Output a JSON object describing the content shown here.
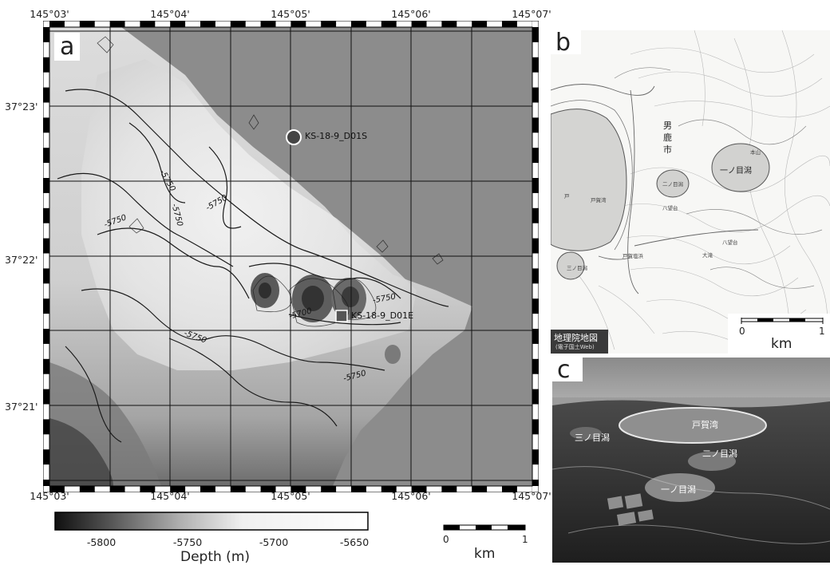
{
  "panel_a": {
    "letter": "a",
    "top_ticks": [
      "145°03'",
      "145°04'",
      "145°05'",
      "145°06'",
      "145°07'"
    ],
    "bottom_ticks": [
      "145°03'",
      "145°04'",
      "145°05'",
      "145°06'",
      "145°07'"
    ],
    "left_ticks": [
      "37°23'",
      "37°22'",
      "37°21'"
    ],
    "sites": [
      {
        "label": "KS-18-9_D01S",
        "marker": "circle"
      },
      {
        "label": "KS-18-9_D01E",
        "marker": "square"
      }
    ],
    "contour_labels": [
      "-5750",
      "-5750",
      "-5750",
      "-5750",
      "-5750",
      "-5700",
      "-5750",
      "-5750"
    ],
    "colorbar": {
      "ticks": [
        "-5800",
        "-5750",
        "-5700",
        "-5650"
      ],
      "label": "Depth (m)"
    },
    "scale": {
      "start": "0",
      "end": "1",
      "unit": "km"
    }
  },
  "panel_b": {
    "letter": "b",
    "place_city": "男\n鹿\n市",
    "lakes": [
      "一ノ目潟",
      "二ノ目潟",
      "三ノ目潟"
    ],
    "source_badge_line1": "地理院地図",
    "source_badge_line2": "(電子国土Web)",
    "scale": {
      "start": "0",
      "end": "1",
      "unit": "km"
    }
  },
  "panel_c": {
    "letter": "c",
    "labels": [
      "戸賀湾",
      "三ノ目潟",
      "二ノ目潟",
      "一ノ目潟"
    ]
  },
  "colors": {
    "ocean_gray": "#8c8c8c",
    "contour": "#1a1a1a"
  }
}
